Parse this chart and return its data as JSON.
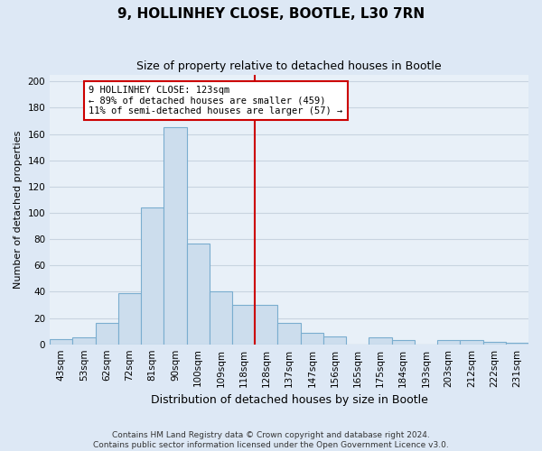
{
  "title": "9, HOLLINHEY CLOSE, BOOTLE, L30 7RN",
  "subtitle": "Size of property relative to detached houses in Bootle",
  "xlabel": "Distribution of detached houses by size in Bootle",
  "ylabel": "Number of detached properties",
  "bar_labels": [
    "43sqm",
    "53sqm",
    "62sqm",
    "72sqm",
    "81sqm",
    "90sqm",
    "100sqm",
    "109sqm",
    "118sqm",
    "128sqm",
    "137sqm",
    "147sqm",
    "156sqm",
    "165sqm",
    "175sqm",
    "184sqm",
    "193sqm",
    "203sqm",
    "212sqm",
    "222sqm",
    "231sqm"
  ],
  "bar_heights": [
    4,
    5,
    16,
    39,
    104,
    165,
    77,
    40,
    30,
    30,
    16,
    9,
    6,
    0,
    5,
    3,
    0,
    3,
    3,
    2,
    1
  ],
  "bar_color": "#ccdded",
  "bar_edge_color": "#7aadcf",
  "vline_color": "#cc0000",
  "ylim": [
    0,
    205
  ],
  "yticks": [
    0,
    20,
    40,
    60,
    80,
    100,
    120,
    140,
    160,
    180,
    200
  ],
  "annotation_title": "9 HOLLINHEY CLOSE: 123sqm",
  "annotation_line1": "← 89% of detached houses are smaller (459)",
  "annotation_line2": "11% of semi-detached houses are larger (57) →",
  "annotation_box_color": "#ffffff",
  "annotation_box_edge": "#cc0000",
  "footer_line1": "Contains HM Land Registry data © Crown copyright and database right 2024.",
  "footer_line2": "Contains public sector information licensed under the Open Government Licence v3.0.",
  "background_color": "#dde8f5",
  "plot_bg_color": "#e8f0f8",
  "grid_color": "#c8d4e0",
  "title_fontsize": 11,
  "subtitle_fontsize": 9,
  "xlabel_fontsize": 9,
  "ylabel_fontsize": 8,
  "tick_fontsize": 7.5,
  "annotation_fontsize": 7.5,
  "footer_fontsize": 6.5
}
